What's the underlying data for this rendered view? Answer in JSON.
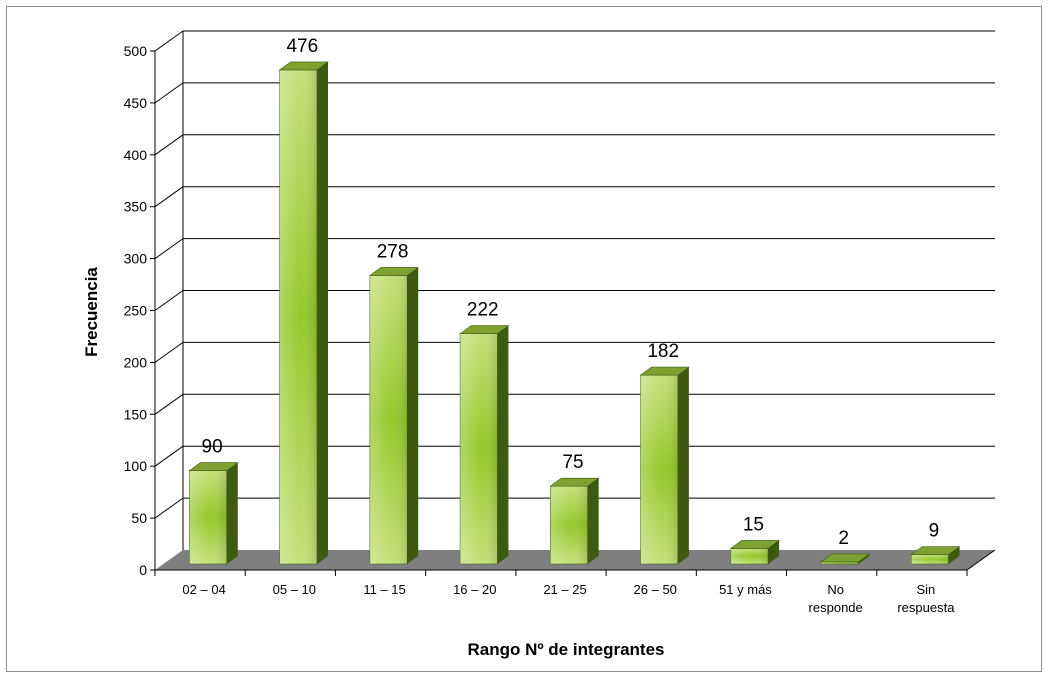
{
  "chart_data": {
    "type": "bar",
    "title": "",
    "xlabel": "Rango Nº de integrantes",
    "ylabel": "Frecuencia",
    "categories": [
      [
        "02 – 04"
      ],
      [
        "05 – 10"
      ],
      [
        "11 – 15"
      ],
      [
        "16 – 20"
      ],
      [
        "21 – 25"
      ],
      [
        "26 – 50"
      ],
      [
        "51 y más"
      ],
      [
        "No",
        "responde"
      ],
      [
        "Sin",
        "respuesta"
      ]
    ],
    "values": [
      90,
      476,
      278,
      222,
      75,
      182,
      15,
      2,
      9
    ],
    "data_labels": [
      "90",
      "476",
      "278",
      "222",
      "75",
      "182",
      "15",
      "2",
      "9"
    ],
    "ylim": [
      0,
      500
    ],
    "yticks": [
      "0",
      "50",
      "100",
      "150",
      "200",
      "250",
      "300",
      "350",
      "400",
      "450",
      "500"
    ],
    "grid": true,
    "legend": "none",
    "style": "3d-column",
    "colors": {
      "bar_light": "#c4e07a",
      "bar_mid": "#93c92a",
      "bar_dark": "#5e8a12",
      "bar_top": "#7ea232",
      "bar_side": "#3d5a10",
      "floor": "#7f7f7f",
      "gridline": "#000000"
    }
  }
}
